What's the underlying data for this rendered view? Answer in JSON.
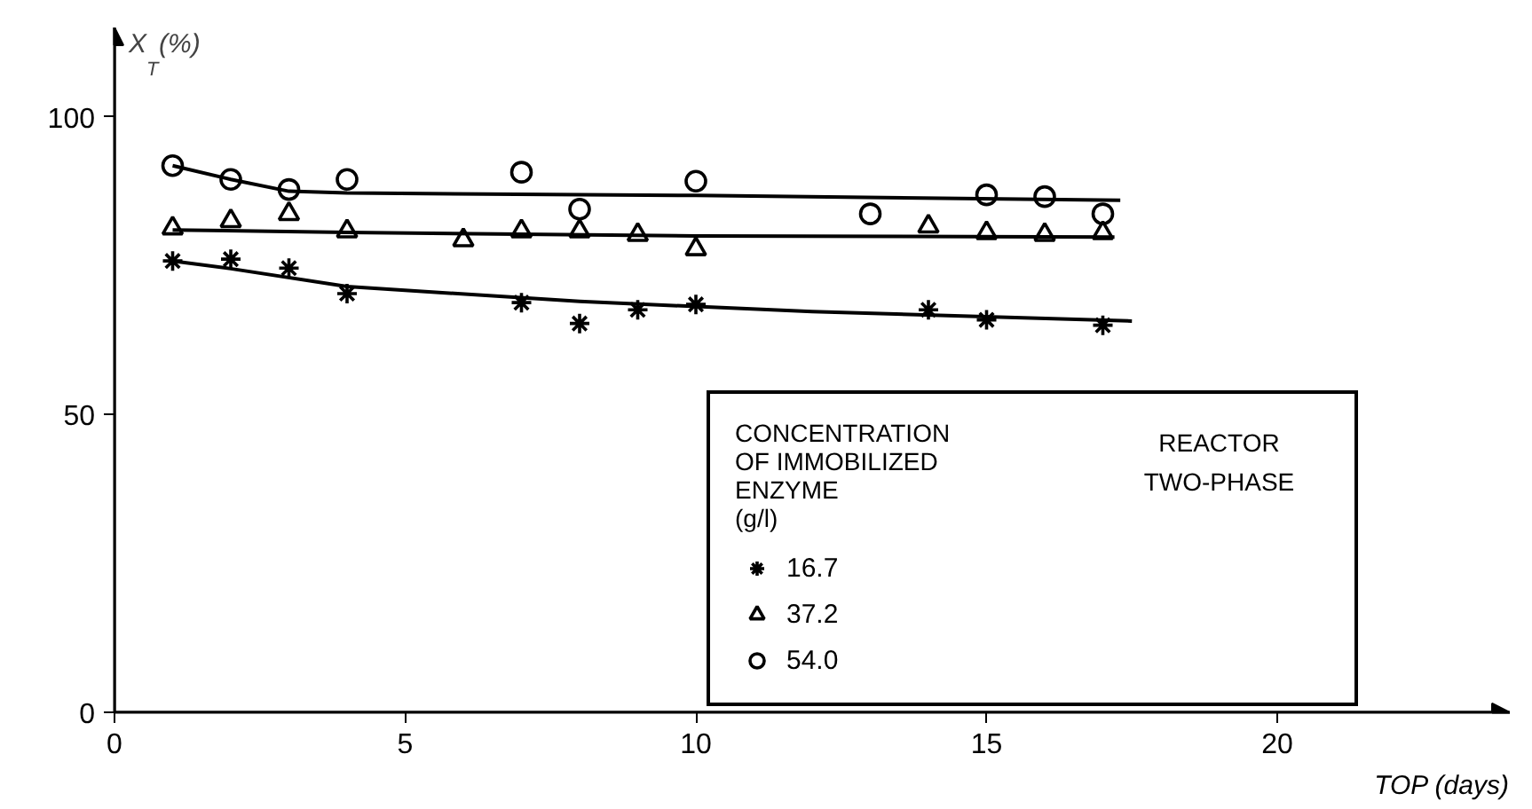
{
  "chart_data": {
    "type": "scatter",
    "xlabel": "TOP (days)",
    "ylabel": "X$_{T}$(%)",
    "xlim": [
      0,
      24
    ],
    "ylim": [
      0,
      115
    ],
    "xticks": [
      0,
      5,
      10,
      15,
      20
    ],
    "yticks": [
      0,
      50,
      100
    ],
    "grid": false,
    "legend": "bottom right",
    "legend_title": "CONCENTRATION\nOF IMMOBILIZED\nENZYME\n(g/l)",
    "annotations": [
      "REACTOR\nTWO-PHASE"
    ],
    "series": [
      {
        "name": "16.7",
        "color": "#000000",
        "marker": "cross",
        "x": [
          1,
          2,
          3,
          4,
          7,
          8,
          9,
          10,
          14,
          15,
          17
        ],
        "values": [
          75.8,
          76.1,
          74.6,
          70.3,
          68.8,
          65.3,
          67.6,
          68.5,
          67.6,
          65.9,
          65.0
        ]
      },
      {
        "name": "37.2",
        "color": "#000000",
        "marker": "triangle",
        "x": [
          1,
          2,
          3,
          4,
          6,
          7,
          8,
          9,
          10,
          14,
          15,
          16,
          17
        ],
        "values": [
          81.3,
          82.5,
          83.7,
          80.8,
          79.3,
          80.8,
          80.8,
          80.2,
          77.8,
          81.6,
          80.5,
          80.2,
          80.5
        ]
      },
      {
        "name": "54.0",
        "color": "#000000",
        "marker": "circle",
        "x": [
          1,
          2,
          3,
          4,
          7,
          8,
          10,
          13,
          15,
          16,
          17
        ],
        "values": [
          91.8,
          89.5,
          87.8,
          89.5,
          90.7,
          84.5,
          89.2,
          83.7,
          86.9,
          86.6,
          83.7
        ]
      },
      {
        "type": "line",
        "color": "#000000",
        "marker": "none",
        "x": [
          1,
          2,
          4,
          8,
          12,
          17.5
        ],
        "values": [
          75.8,
          74.5,
          71.5,
          69.0,
          67.3,
          65.7
        ]
      },
      {
        "type": "line",
        "color": "#000000",
        "marker": "none",
        "x": [
          1,
          4,
          10,
          17.2
        ],
        "values": [
          81.0,
          80.6,
          80.0,
          79.8
        ]
      },
      {
        "type": "line",
        "color": "#000000",
        "marker": "none",
        "x": [
          1,
          2,
          3,
          4,
          10,
          17.3
        ],
        "values": [
          91.8,
          89.5,
          87.5,
          87.2,
          86.8,
          86.0
        ]
      }
    ]
  }
}
